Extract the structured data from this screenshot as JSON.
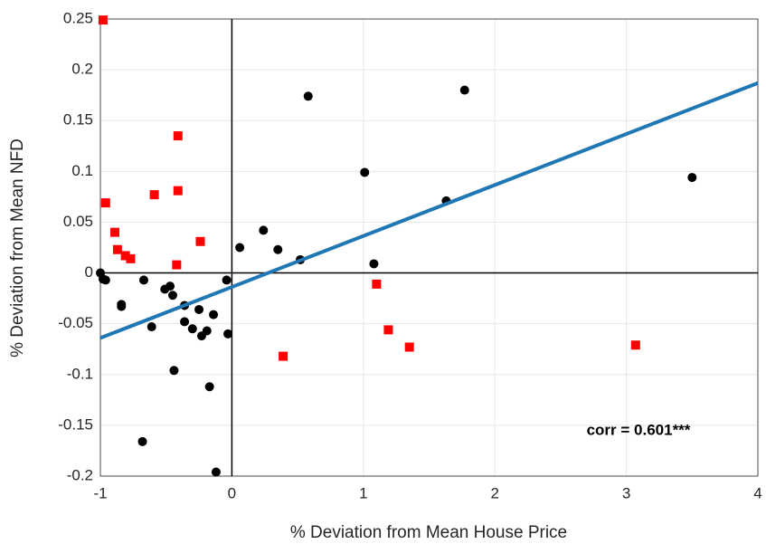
{
  "chart_data": {
    "type": "scatter",
    "x_label": "% Deviation from Mean House Price",
    "y_label": "% Deviation from Mean NFD",
    "annotation": "corr = 0.601***",
    "xlim": [
      -1,
      4
    ],
    "ylim": [
      -0.2,
      0.25
    ],
    "xticks": [
      -1,
      0,
      1,
      2,
      3,
      4
    ],
    "yticks": [
      -0.2,
      -0.15,
      -0.1,
      -0.05,
      0,
      0.05,
      0.1,
      0.15,
      0.2,
      0.25
    ],
    "grid": true,
    "series": [
      {
        "color": "#000000",
        "marker": "circle",
        "x": [
          -1.0,
          -0.98,
          -0.96,
          -0.84,
          -0.84,
          -0.67,
          -0.61,
          -0.68,
          -0.51,
          -0.47,
          -0.45,
          -0.36,
          -0.36,
          -0.3,
          -0.25,
          -0.23,
          -0.19,
          -0.14,
          -0.17,
          -0.44,
          -0.12,
          -0.04,
          -0.03,
          0.06,
          0.24,
          0.35,
          0.52,
          0.58,
          1.01,
          1.08,
          1.63,
          1.77,
          3.5
        ],
        "values": [
          0.0,
          -0.006,
          -0.007,
          -0.031,
          -0.033,
          -0.007,
          -0.053,
          -0.166,
          -0.016,
          -0.013,
          -0.022,
          -0.032,
          -0.048,
          -0.055,
          -0.036,
          -0.062,
          -0.057,
          -0.041,
          -0.112,
          -0.096,
          -0.196,
          -0.007,
          -0.06,
          0.025,
          0.042,
          0.023,
          0.013,
          0.174,
          0.099,
          0.009,
          0.071,
          0.18,
          0.094
        ]
      },
      {
        "color": "#ff0000",
        "marker": "square",
        "x": [
          -0.98,
          -0.96,
          -0.89,
          -0.87,
          -0.81,
          -0.77,
          -0.59,
          -0.41,
          -0.41,
          -0.42,
          -0.24,
          0.39,
          1.1,
          1.19,
          1.35,
          3.07
        ],
        "values": [
          0.249,
          0.069,
          0.04,
          0.023,
          0.017,
          0.014,
          0.077,
          0.135,
          0.081,
          0.008,
          0.031,
          -0.082,
          -0.011,
          -0.056,
          -0.073,
          -0.071
        ]
      }
    ],
    "fit_line": {
      "color": "#1f77b4",
      "x": [
        -1,
        4
      ],
      "values": [
        -0.064,
        0.187
      ]
    }
  }
}
